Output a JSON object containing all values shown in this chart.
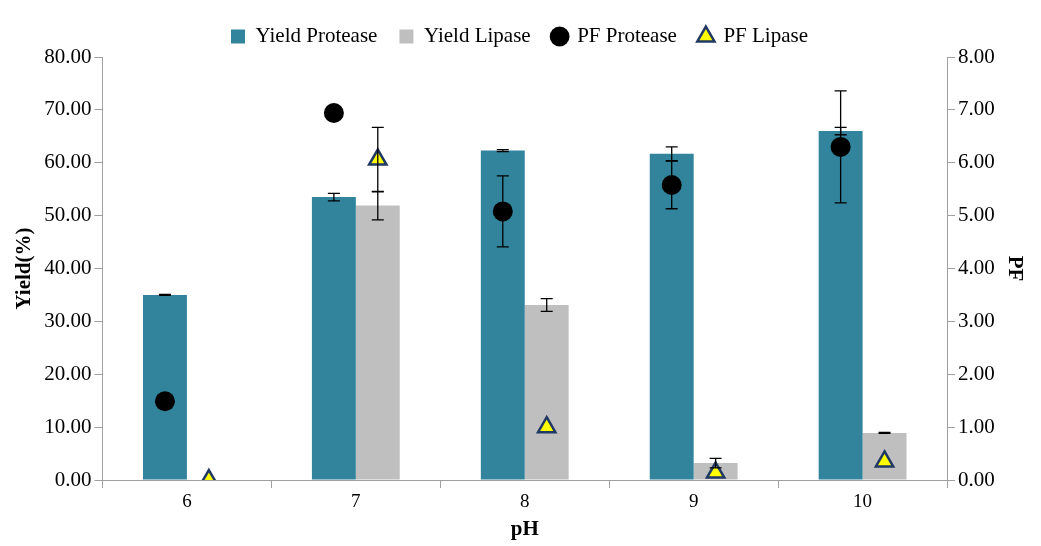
{
  "chart_data": {
    "type": "bar",
    "xlabel": "pH",
    "ylabel": "Yield(%)",
    "y2label": "PF",
    "categories": [
      "6",
      "7",
      "8",
      "9",
      "10"
    ],
    "series": [
      {
        "name": "Yield Protease",
        "color": "#31849b",
        "values": [
          35.0,
          53.5,
          62.3,
          61.7,
          66.0
        ],
        "errors": [
          0.1,
          0.7,
          0.2,
          1.3,
          0.7
        ]
      },
      {
        "name": "Yield Lipase",
        "color": "#bfbfbf",
        "values": [
          0,
          51.9,
          33.1,
          3.2,
          8.9
        ],
        "errors": [
          null,
          2.7,
          1.2,
          0.9,
          0.1
        ]
      },
      {
        "name": "PF Protease",
        "type": "scatter",
        "axis": "y2",
        "marker": "circle",
        "color": "#000000",
        "x": [
          "6",
          "7",
          "8",
          "9",
          "10"
        ],
        "values": [
          1.49,
          6.94,
          5.08,
          5.58,
          6.3
        ],
        "errors": [
          null,
          null,
          0.67,
          0.45,
          1.06
        ]
      },
      {
        "name": "PF Lipase",
        "type": "scatter",
        "axis": "y2",
        "marker": "triangle",
        "color": "#ffff00",
        "x": [
          "6",
          "7",
          "8",
          "9",
          "10"
        ],
        "values": [
          0.0,
          6.06,
          1.0,
          0.14,
          0.35
        ],
        "errors": [
          null,
          0.61,
          null,
          null,
          null
        ]
      }
    ],
    "ylim": [
      0,
      80
    ],
    "yticks": [
      {
        "value": 0,
        "label": "0.00"
      },
      {
        "value": 10,
        "label": "10.00"
      },
      {
        "value": 20,
        "label": "20.00"
      },
      {
        "value": 30,
        "label": "30.00"
      },
      {
        "value": 40,
        "label": "40.00"
      },
      {
        "value": 50,
        "label": "50.00"
      },
      {
        "value": 60,
        "label": "60.00"
      },
      {
        "value": 70,
        "label": "70.00"
      },
      {
        "value": 80,
        "label": "80.00"
      }
    ],
    "y2lim": [
      0,
      8
    ],
    "y2ticks": [
      {
        "value": 0,
        "label": "0.00"
      },
      {
        "value": 1,
        "label": "1.00"
      },
      {
        "value": 2,
        "label": "2.00"
      },
      {
        "value": 3,
        "label": "3.00"
      },
      {
        "value": 4,
        "label": "4.00"
      },
      {
        "value": 5,
        "label": "5.00"
      },
      {
        "value": 6,
        "label": "6.00"
      },
      {
        "value": 7,
        "label": "7.00"
      },
      {
        "value": 8,
        "label": "8.00"
      }
    ],
    "grid": false,
    "legend": "top"
  }
}
